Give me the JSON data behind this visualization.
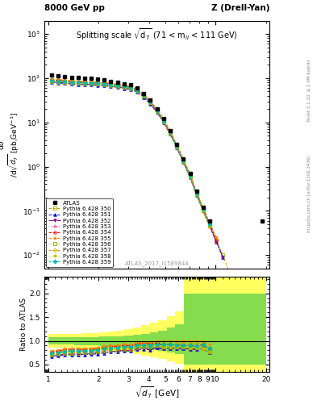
{
  "title_top_left": "8000 GeV pp",
  "title_top_right": "Z (Drell-Yan)",
  "plot_title": "Splitting scale $\\sqrt{\\mathrm{d}_7}$ (71 < m$_{ll}$ < 111 GeV)",
  "ylabel_main": "d$\\sigma$/d$\\sqrt{d_7}$ [pb,GeV$^{-1}$]",
  "ylabel_ratio": "Ratio to ATLAS",
  "xlabel": "$\\sqrt{d_7}$ [GeV]",
  "watermark": "ATLAS_2017_I1589844",
  "right_label_top": "Rivet 3.1.10, ≥ 2.4M events",
  "right_label_bot": "mcplots.cern.ch [arXiv:1306.3436]",
  "x_data": [
    1.05,
    1.15,
    1.26,
    1.38,
    1.51,
    1.65,
    1.81,
    1.98,
    2.17,
    2.37,
    2.6,
    2.84,
    3.11,
    3.41,
    3.73,
    4.08,
    4.47,
    4.9,
    5.36,
    5.87,
    6.43,
    7.04,
    7.7,
    8.43,
    9.23,
    10.11,
    11.07,
    12.12,
    13.27,
    14.53,
    15.91,
    17.42,
    19.07
  ],
  "atlas_y": [
    120,
    115,
    108,
    105,
    102,
    100,
    98,
    95,
    90,
    85,
    80,
    75,
    70,
    60,
    45,
    32,
    20,
    12,
    6.5,
    3.2,
    1.5,
    0.7,
    0.28,
    0.12,
    0.06,
    null,
    null,
    null,
    null,
    null,
    null,
    null,
    0.06
  ],
  "series": [
    {
      "label": "Pythia 6.428 350",
      "color": "#aaaa00",
      "marker": "s",
      "linestyle": "--",
      "filled": false,
      "y": [
        90,
        88,
        86,
        84,
        82,
        80,
        79,
        78,
        76,
        73,
        70,
        66,
        62,
        55,
        42,
        30,
        19,
        11,
        6.0,
        3.0,
        1.4,
        0.65,
        0.26,
        0.11,
        0.05,
        0.022,
        0.01,
        0.004,
        null,
        null,
        null,
        null,
        null
      ]
    },
    {
      "label": "Pythia 6.428 351",
      "color": "#0000ee",
      "marker": "^",
      "linestyle": "--",
      "filled": true,
      "y": [
        80,
        78,
        76,
        74,
        72,
        71,
        70,
        69,
        67,
        65,
        62,
        59,
        55,
        49,
        37,
        26,
        17,
        10,
        5.5,
        2.7,
        1.25,
        0.58,
        0.23,
        0.1,
        0.045,
        0.02,
        0.009,
        null,
        null,
        null,
        null,
        null,
        null
      ]
    },
    {
      "label": "Pythia 6.428 352",
      "color": "#880088",
      "marker": "v",
      "linestyle": "-.",
      "filled": true,
      "y": [
        82,
        80,
        78,
        76,
        74,
        73,
        72,
        71,
        69,
        66,
        63,
        60,
        56,
        50,
        38,
        27,
        17,
        10,
        5.5,
        2.7,
        1.25,
        0.58,
        0.23,
        0.1,
        0.045,
        0.02,
        0.009,
        null,
        null,
        null,
        null,
        null,
        null
      ]
    },
    {
      "label": "Pythia 6.428 353",
      "color": "#ff44aa",
      "marker": "^",
      "linestyle": ":",
      "filled": false,
      "y": [
        88,
        86,
        84,
        82,
        80,
        79,
        78,
        77,
        75,
        72,
        69,
        65,
        61,
        54,
        41,
        29,
        18.5,
        11,
        6.0,
        2.9,
        1.35,
        0.63,
        0.25,
        0.11,
        0.05,
        null,
        null,
        null,
        null,
        null,
        null,
        null,
        null
      ]
    },
    {
      "label": "Pythia 6.428 354",
      "color": "#ff0000",
      "marker": "o",
      "linestyle": "--",
      "filled": false,
      "y": [
        92,
        90,
        88,
        86,
        84,
        82,
        81,
        80,
        78,
        75,
        71,
        68,
        63,
        56,
        43,
        30,
        19,
        11,
        6.0,
        2.9,
        1.35,
        0.63,
        0.25,
        0.11,
        0.05,
        0.022,
        null,
        null,
        null,
        null,
        null,
        null,
        null
      ]
    },
    {
      "label": "Pythia 6.428 355",
      "color": "#ff8800",
      "marker": "*",
      "linestyle": "--",
      "filled": true,
      "y": [
        95,
        93,
        91,
        88,
        86,
        84,
        83,
        82,
        80,
        77,
        73,
        70,
        65,
        58,
        44,
        31,
        20,
        12,
        6.5,
        3.2,
        1.5,
        0.7,
        0.28,
        0.12,
        0.055,
        0.025,
        null,
        null,
        null,
        null,
        null,
        null,
        null
      ]
    },
    {
      "label": "Pythia 6.428 356",
      "color": "#88aa00",
      "marker": "s",
      "linestyle": ":",
      "filled": false,
      "y": [
        84,
        82,
        80,
        78,
        76,
        75,
        74,
        73,
        71,
        68,
        65,
        62,
        58,
        51,
        39,
        28,
        18,
        10.5,
        5.7,
        2.8,
        1.3,
        0.6,
        0.24,
        0.1,
        0.046,
        null,
        null,
        null,
        null,
        null,
        null,
        null,
        null
      ]
    },
    {
      "label": "Pythia 6.428 357",
      "color": "#ccaa00",
      "marker": "D",
      "linestyle": "--",
      "filled": false,
      "y": [
        86,
        84,
        82,
        80,
        78,
        77,
        76,
        75,
        73,
        70,
        67,
        63,
        59,
        53,
        40,
        28.5,
        18,
        10.5,
        5.7,
        2.8,
        1.3,
        0.6,
        0.24,
        0.1,
        0.046,
        null,
        null,
        null,
        null,
        null,
        null,
        null,
        null
      ]
    },
    {
      "label": "Pythia 6.428 358",
      "color": "#aacc00",
      "marker": "p",
      "linestyle": ":",
      "filled": true,
      "y": [
        87,
        85,
        83,
        81,
        79,
        78,
        77,
        76,
        74,
        71,
        68,
        64,
        60,
        53,
        40,
        28.5,
        18,
        10.5,
        5.7,
        2.8,
        1.3,
        0.6,
        0.24,
        0.1,
        0.046,
        null,
        null,
        null,
        null,
        null,
        null,
        null,
        null
      ]
    },
    {
      "label": "Pythia 6.428 359",
      "color": "#00bbaa",
      "marker": "D",
      "linestyle": "--",
      "filled": true,
      "y": [
        88,
        86,
        84,
        82,
        80,
        79,
        78,
        77,
        75,
        72,
        69,
        65,
        61,
        54,
        41,
        29,
        18.5,
        11,
        6.0,
        2.9,
        1.35,
        0.63,
        0.25,
        0.11,
        0.05,
        null,
        null,
        null,
        null,
        null,
        null,
        null,
        null
      ]
    }
  ],
  "ratio_x_edges": [
    1.0,
    1.13,
    1.27,
    1.43,
    1.6,
    1.8,
    2.02,
    2.27,
    2.55,
    2.86,
    3.22,
    3.61,
    4.06,
    4.56,
    5.12,
    5.75,
    6.46,
    7.26,
    8.15,
    9.16,
    10.29,
    11.56,
    12.98,
    14.58,
    16.38,
    20.0
  ],
  "ratio_green_lo": [
    0.93,
    0.93,
    0.92,
    0.91,
    0.91,
    0.9,
    0.89,
    0.88,
    0.87,
    0.86,
    0.84,
    0.82,
    0.8,
    0.78,
    0.75,
    0.72,
    0.5,
    0.5,
    0.5,
    0.5,
    0.5,
    0.5,
    0.5,
    0.5,
    0.5
  ],
  "ratio_green_hi": [
    1.07,
    1.07,
    1.07,
    1.07,
    1.08,
    1.08,
    1.09,
    1.09,
    1.1,
    1.11,
    1.13,
    1.15,
    1.18,
    1.22,
    1.28,
    1.35,
    2.0,
    2.0,
    2.0,
    2.0,
    2.0,
    2.0,
    2.0,
    2.0,
    2.0
  ],
  "ratio_yellow_lo": [
    0.86,
    0.86,
    0.85,
    0.84,
    0.83,
    0.82,
    0.8,
    0.79,
    0.77,
    0.75,
    0.72,
    0.69,
    0.65,
    0.61,
    0.57,
    0.52,
    0.35,
    0.35,
    0.35,
    0.35,
    0.35,
    0.35,
    0.35,
    0.35,
    0.35
  ],
  "ratio_yellow_hi": [
    1.14,
    1.14,
    1.14,
    1.15,
    1.16,
    1.17,
    1.18,
    1.2,
    1.22,
    1.25,
    1.28,
    1.33,
    1.38,
    1.44,
    1.52,
    1.62,
    2.5,
    2.5,
    2.5,
    2.5,
    2.5,
    2.5,
    2.5,
    2.5,
    2.5
  ],
  "ratio_ylim": [
    0.35,
    2.35
  ],
  "ratio_yticks": [
    0.5,
    1.0,
    1.5,
    2.0
  ],
  "main_ylim_lo": 0.005,
  "main_ylim_hi": 2000
}
